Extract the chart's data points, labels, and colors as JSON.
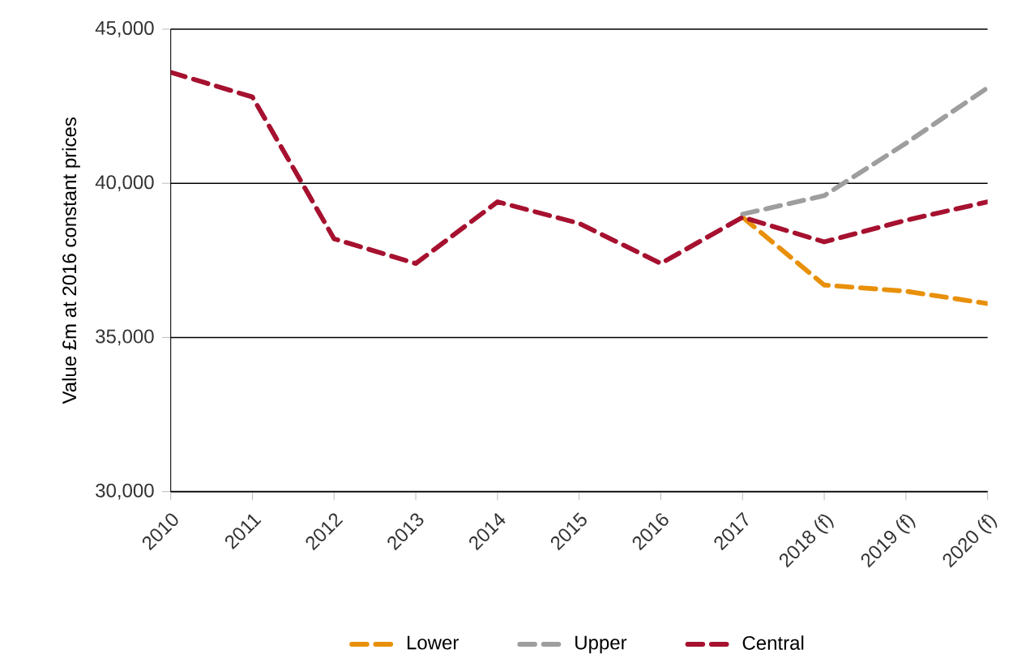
{
  "chart_data": {
    "type": "line",
    "ylabel": "Value £m at 2016 constant prices",
    "categories": [
      "2010",
      "2011",
      "2012",
      "2013",
      "2014",
      "2015",
      "2016",
      "2017",
      "2018 (f)",
      "2019 (f)",
      "2020 (f)"
    ],
    "ylim": [
      30000,
      45000
    ],
    "yticks": [
      {
        "value": 30000,
        "label": "30,000"
      },
      {
        "value": 35000,
        "label": "35,000"
      },
      {
        "value": 40000,
        "label": "40,000"
      },
      {
        "value": 45000,
        "label": "45,000"
      }
    ],
    "grid": "y",
    "legend": "bottom",
    "line_style": "dashed",
    "marker": "none",
    "series": [
      {
        "name": "Lower",
        "color": "#e8900a",
        "values": [
          null,
          null,
          null,
          null,
          null,
          null,
          null,
          38900,
          36700,
          36500,
          36100
        ]
      },
      {
        "name": "Upper",
        "color": "#9e9e9e",
        "values": [
          null,
          null,
          null,
          null,
          null,
          null,
          null,
          39000,
          39600,
          41300,
          43100
        ]
      },
      {
        "name": "Central",
        "color": "#a6112f",
        "values": [
          43600,
          42800,
          38200,
          37400,
          39400,
          38700,
          37400,
          38900,
          38100,
          38800,
          39400
        ]
      }
    ]
  }
}
